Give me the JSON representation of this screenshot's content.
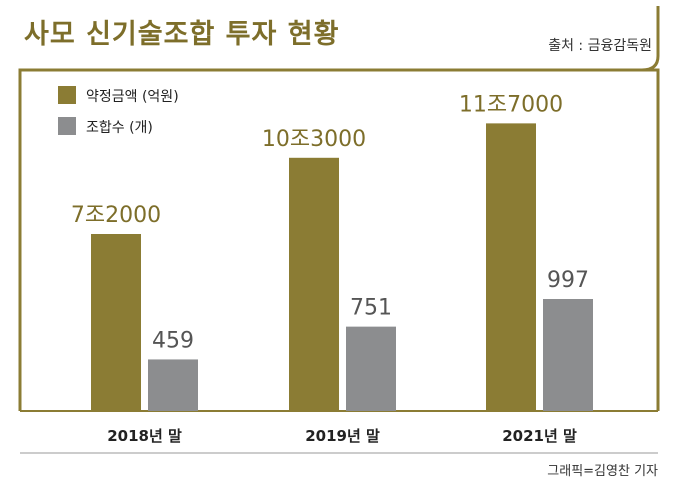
{
  "header": {
    "title": "사모 신기술조합 투자 현황",
    "source": "출처 : 금융감독원"
  },
  "credit": "그래픽=김영찬 기자",
  "colors": {
    "gold": "#8b7c34",
    "gray": "#8c8d8f",
    "title": "#7d6e2a"
  },
  "chart_data": {
    "type": "bar",
    "categories": [
      "2018년 말",
      "2019년 말",
      "2021년 말"
    ],
    "series": [
      {
        "name": "약정금액 (억원)",
        "values": [
          72000,
          103000,
          117000
        ],
        "labels": [
          "7조2000",
          "10조3000",
          "11조7000"
        ]
      },
      {
        "name": "조합수 (개)",
        "values": [
          459,
          751,
          997
        ],
        "labels": [
          "459",
          "751",
          "997"
        ]
      }
    ],
    "legend_position": "top-left",
    "grid": false
  }
}
